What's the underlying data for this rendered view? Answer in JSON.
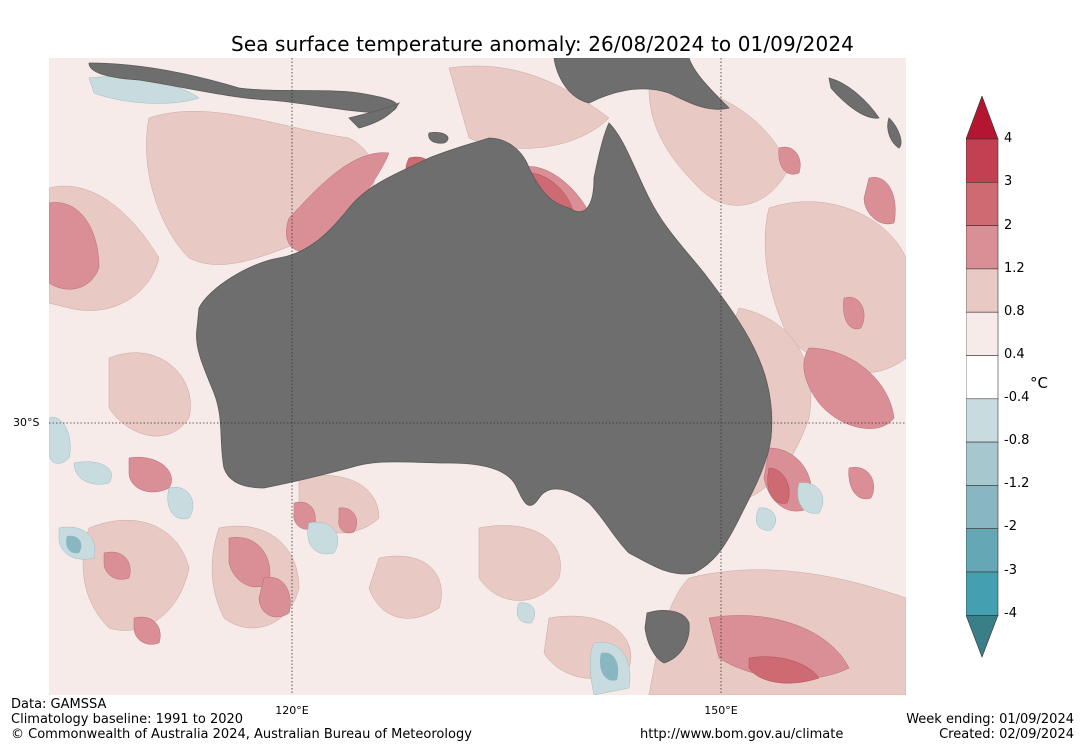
{
  "title": "Sea surface temperature anomaly: 26/08/2024 to 01/09/2024",
  "map": {
    "lat_labels": [
      "30°S"
    ],
    "lon_labels": [
      "120°E",
      "150°E"
    ],
    "land_color": "#6e6e6e"
  },
  "colorbar": {
    "unit": "°C",
    "ticks": [
      "4",
      "3",
      "2",
      "1.2",
      "0.8",
      "0.4",
      "-0.4",
      "-0.8",
      "-1.2",
      "-2",
      "-3",
      "-4"
    ],
    "colors": [
      "#b5162f",
      "#c2404f",
      "#cd6a72",
      "#d98f95",
      "#e9c9c4",
      "#f6ebe9",
      "#ffffff",
      "#c8dce0",
      "#a6c7cd",
      "#88b7c1",
      "#66a7b5",
      "#44a0b0",
      "#3a7e88"
    ]
  },
  "footer": {
    "data": "Data: GAMSSA",
    "baseline": "Climatology baseline: 1991 to 2020",
    "copyright": "© Commonwealth of Australia 2024, Australian Bureau of Meteorology",
    "url": "http://www.bom.gov.au/climate",
    "week_ending": "Week ending: 01/09/2024",
    "created": "Created: 02/09/2024"
  }
}
